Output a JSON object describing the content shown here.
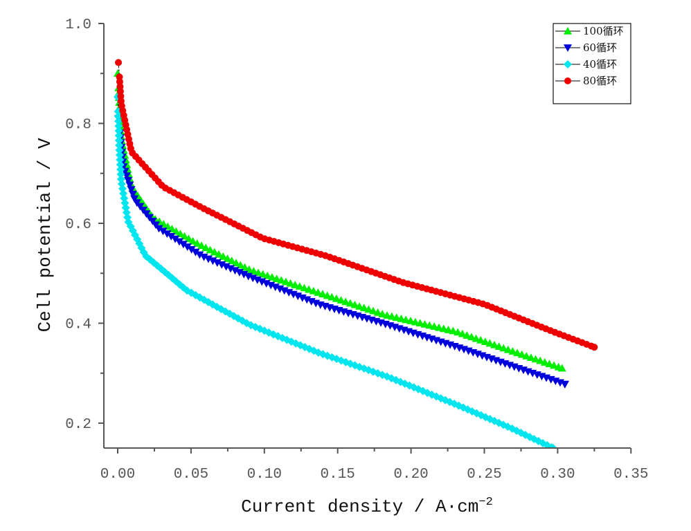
{
  "chart_data": {
    "type": "line",
    "title": "",
    "xlabel": "Current density / A·cm",
    "xlabel_superscript": "−2",
    "ylabel": "Cell potential / V",
    "xlim": [
      -0.01,
      0.35
    ],
    "ylim": [
      0.15,
      1.0
    ],
    "xticks": [
      "0.00",
      "0.05",
      "0.10",
      "0.15",
      "0.20",
      "0.25",
      "0.30",
      "0.35"
    ],
    "xtick_values": [
      0,
      0.05,
      0.1,
      0.15,
      0.2,
      0.25,
      0.3,
      0.35
    ],
    "yticks": [
      "0.2",
      "0.4",
      "0.6",
      "0.8",
      "1.0"
    ],
    "ytick_values": [
      0.2,
      0.4,
      0.6,
      0.8,
      1.0
    ],
    "grid": false,
    "legend_position": "top-right",
    "series": [
      {
        "name": "100循环",
        "color": "#00ee00",
        "marker": "triangle-up",
        "x": [
          0,
          0.0024,
          0.0094,
          0.024,
          0.052,
          0.09,
          0.132,
          0.182,
          0.231,
          0.279,
          0.303
        ],
        "y": [
          0.9,
          0.77,
          0.673,
          0.611,
          0.563,
          0.507,
          0.466,
          0.417,
          0.383,
          0.334,
          0.31
        ]
      },
      {
        "name": "60循环",
        "color": "#0000dd",
        "marker": "triangle-down",
        "x": [
          0.0005,
          0.0038,
          0.0118,
          0.028,
          0.057,
          0.09,
          0.137,
          0.184,
          0.236,
          0.283,
          0.305
        ],
        "y": [
          0.81,
          0.715,
          0.646,
          0.59,
          0.535,
          0.493,
          0.438,
          0.397,
          0.348,
          0.3,
          0.278
        ]
      },
      {
        "name": "40循环",
        "color": "#00e5ee",
        "marker": "diamond",
        "x": [
          0,
          0.001,
          0.0024,
          0.0071,
          0.019,
          0.047,
          0.09,
          0.137,
          0.184,
          0.231,
          0.269,
          0.297
        ],
        "y": [
          0.853,
          0.756,
          0.684,
          0.604,
          0.535,
          0.466,
          0.397,
          0.341,
          0.293,
          0.237,
          0.189,
          0.15
        ]
      },
      {
        "name": "80循环",
        "color": "#ee0000",
        "marker": "circle",
        "x": [
          0.0005,
          0.0024,
          0.0094,
          0.031,
          0.057,
          0.099,
          0.142,
          0.194,
          0.25,
          0.297,
          0.325
        ],
        "y": [
          0.922,
          0.84,
          0.743,
          0.673,
          0.632,
          0.57,
          0.535,
          0.482,
          0.438,
          0.383,
          0.352
        ]
      }
    ]
  }
}
